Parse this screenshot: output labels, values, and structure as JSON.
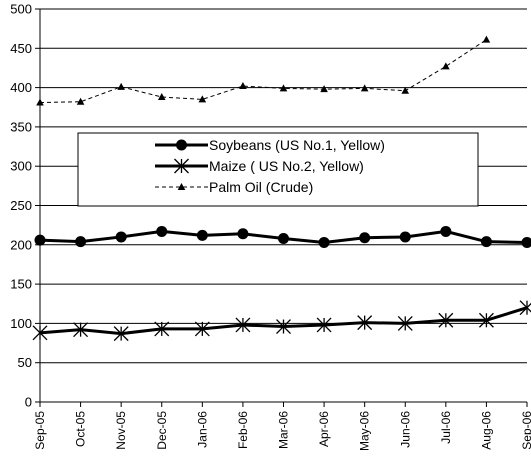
{
  "chart_data": {
    "type": "line",
    "title": "",
    "xlabel": "",
    "ylabel": "",
    "ylim": [
      0,
      500
    ],
    "yticks": [
      0,
      50,
      100,
      150,
      200,
      250,
      300,
      350,
      400,
      450,
      500
    ],
    "grid": true,
    "legend_position": "center",
    "categories": [
      "Sep-05",
      "Oct-05",
      "Nov-05",
      "Dec-05",
      "Jan-06",
      "Feb-06",
      "Mar-06",
      "Apr-06",
      "May-06",
      "Jun-06",
      "Jul-06",
      "Aug-06",
      "Sep-06"
    ],
    "series": [
      {
        "name": "Soybeans (US No.1, Yellow)",
        "marker": "circle",
        "line_style": "solid-thick",
        "color": "#000000",
        "values": [
          206,
          204,
          210,
          217,
          212,
          214,
          208,
          203,
          209,
          210,
          217,
          204,
          203
        ]
      },
      {
        "name": "Maize ( US No.2, Yellow)",
        "marker": "asterisk",
        "line_style": "solid-thick",
        "color": "#000000",
        "values": [
          88,
          92,
          87,
          93,
          93,
          98,
          96,
          98,
          101,
          100,
          104,
          104,
          120
        ]
      },
      {
        "name": "Palm Oil (Crude)",
        "marker": "triangle",
        "line_style": "dashed",
        "color": "#000000",
        "values": [
          381,
          382,
          401,
          388,
          385,
          402,
          399,
          398,
          399,
          396,
          427,
          461,
          null
        ]
      }
    ]
  }
}
